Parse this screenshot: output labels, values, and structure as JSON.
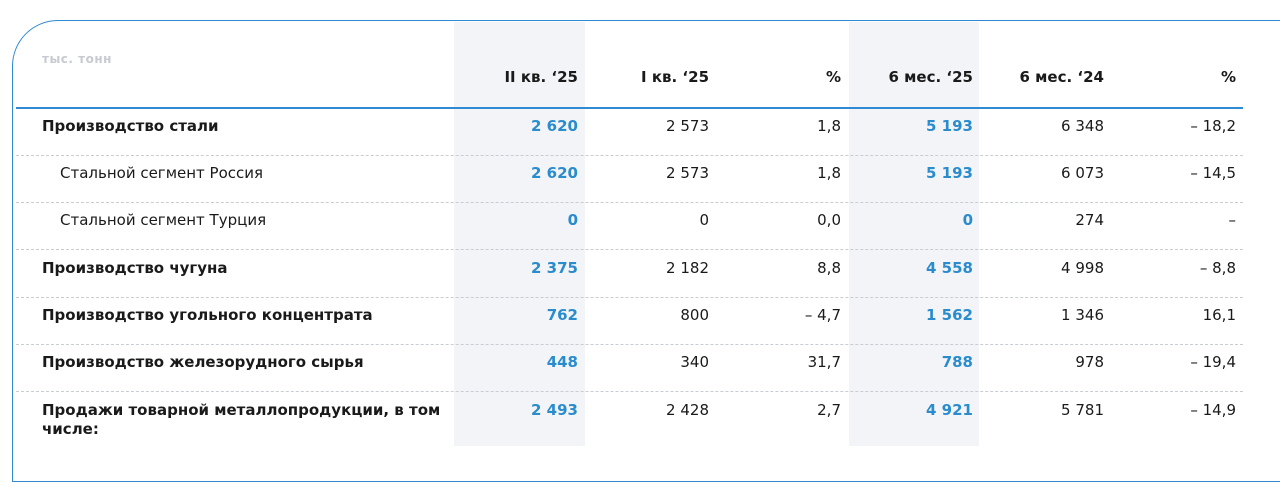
{
  "table": {
    "unit_label": "тыс. тонн",
    "headers": [
      "II кв. ‘25",
      "I кв. ‘25",
      "%",
      "6 мес. ‘25",
      "6 мес. ‘24",
      "%"
    ],
    "rows": [
      {
        "label": "Производство стали",
        "cells": [
          "2 620",
          "2 573",
          "1,8",
          "5 193",
          "6 348",
          "– 18,2"
        ]
      },
      {
        "label": "Стальной сегмент Россия",
        "cells": [
          "2 620",
          "2 573",
          "1,8",
          "5 193",
          "6 073",
          "– 14,5"
        ]
      },
      {
        "label": "Стальной сегмент Турция",
        "cells": [
          "0",
          "0",
          "0,0",
          "0",
          "274",
          "–"
        ]
      },
      {
        "label": "Производство чугуна",
        "cells": [
          "2 375",
          "2 182",
          "8,8",
          "4 558",
          "4 998",
          "– 8,8"
        ]
      },
      {
        "label": "Производство угольного концентрата",
        "cells": [
          "762",
          "800",
          "– 4,7",
          "1 562",
          "1 346",
          "16,1"
        ]
      },
      {
        "label": "Производство железорудного сырья",
        "cells": [
          "448",
          "340",
          "31,7",
          "788",
          "978",
          "– 19,4"
        ]
      },
      {
        "label": "Продажи товарной металлопродукции, в том числе:",
        "cells": [
          "2 493",
          "2 428",
          "2,7",
          "4 921",
          "5 781",
          "– 14,9"
        ]
      }
    ]
  },
  "colors": {
    "accent": "#2f8ad3",
    "highlight_text": "#2a8ccd",
    "shade": "#f2f4f8"
  }
}
